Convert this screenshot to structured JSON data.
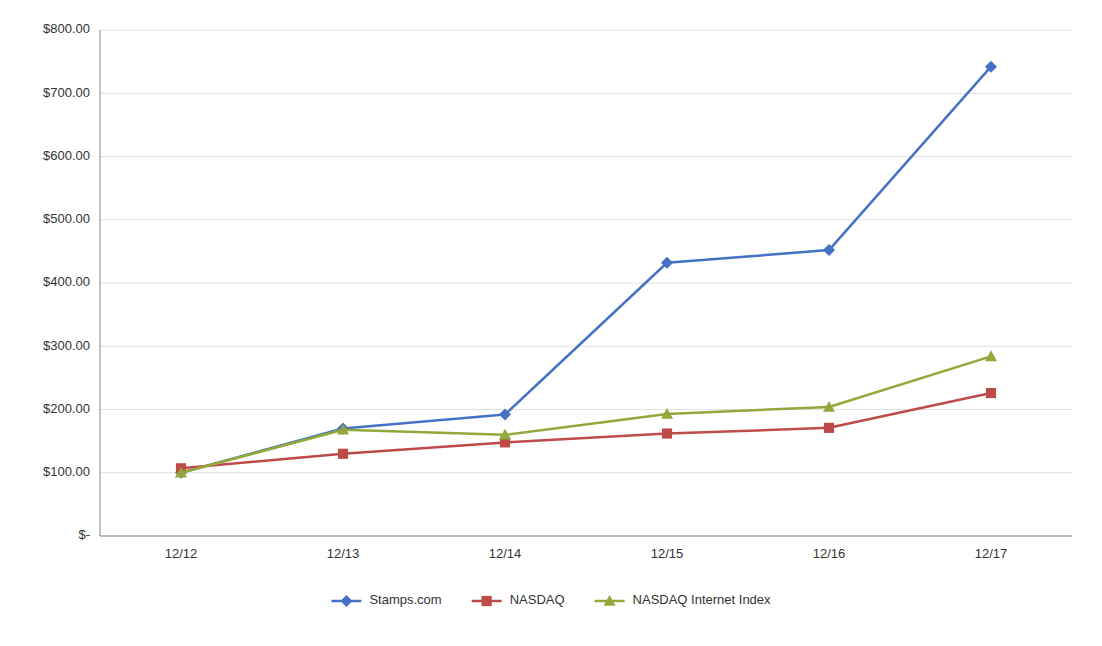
{
  "chart_data": {
    "type": "line",
    "categories": [
      "12/12",
      "12/13",
      "12/14",
      "12/15",
      "12/16",
      "12/17"
    ],
    "series": [
      {
        "name": "Stamps.com",
        "color": "#4472C4",
        "marker": "diamond",
        "values": [
          100.0,
          170.0,
          192.0,
          432.0,
          452.0,
          742.0
        ]
      },
      {
        "name": "NASDAQ",
        "color": "#BE4B48",
        "marker": "square",
        "values": [
          107.0,
          130.0,
          148.0,
          162.0,
          171.0,
          226.0
        ]
      },
      {
        "name": "NASDAQ Internet Index",
        "color": "#92A83A",
        "marker": "triangle",
        "values": [
          100.0,
          168.0,
          160.0,
          193.0,
          204.0,
          284.0
        ]
      }
    ],
    "ylim": [
      0,
      800
    ],
    "yticks": [
      {
        "value": 0,
        "label": "$-"
      },
      {
        "value": 100,
        "label": "$100.00"
      },
      {
        "value": 200,
        "label": "$200.00"
      },
      {
        "value": 300,
        "label": "$300.00"
      },
      {
        "value": 400,
        "label": "$400.00"
      },
      {
        "value": 500,
        "label": "$500.00"
      },
      {
        "value": 600,
        "label": "$600.00"
      },
      {
        "value": 700,
        "label": "$700.00"
      },
      {
        "value": 800,
        "label": "$800.00"
      }
    ],
    "grid": true,
    "legend": "bottom"
  }
}
